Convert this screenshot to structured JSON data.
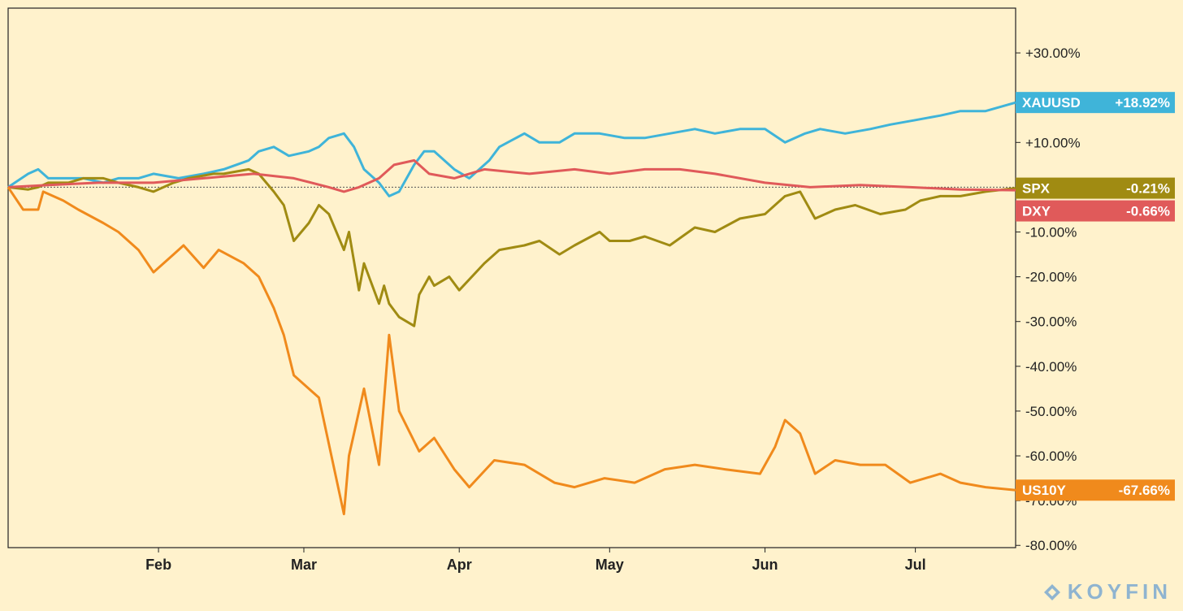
{
  "chart_data": {
    "type": "line",
    "y_unit": "%",
    "ylim": [
      -80,
      40
    ],
    "yticks": [
      30,
      10,
      -10,
      -20,
      -30,
      -40,
      -50,
      -60,
      -70,
      -80
    ],
    "ytick_labels": [
      "+30.00%",
      "+10.00%",
      "-10.00%",
      "-20.00%",
      "-30.00%",
      "-40.00%",
      "-50.00%",
      "-60.00%",
      "-70.00%",
      "-80.00%"
    ],
    "xlim": [
      "2020-01-02",
      "2020-07-21"
    ],
    "xticks": [
      {
        "label": "Feb",
        "date": "2020-02-01"
      },
      {
        "label": "Mar",
        "date": "2020-03-01"
      },
      {
        "label": "Apr",
        "date": "2020-04-01"
      },
      {
        "label": "May",
        "date": "2020-05-01"
      },
      {
        "label": "Jun",
        "date": "2020-06-01"
      },
      {
        "label": "Jul",
        "date": "2020-07-01"
      }
    ],
    "baseline": 0,
    "grid": false,
    "series": [
      {
        "name": "XAUUSD",
        "value_label": "+18.92%",
        "color": "#3fb4d9",
        "points": [
          [
            "2020-01-02",
            0
          ],
          [
            "2020-01-06",
            3
          ],
          [
            "2020-01-08",
            4
          ],
          [
            "2020-01-10",
            2
          ],
          [
            "2020-01-14",
            2
          ],
          [
            "2020-01-17",
            2
          ],
          [
            "2020-01-21",
            1
          ],
          [
            "2020-01-24",
            2
          ],
          [
            "2020-01-28",
            2
          ],
          [
            "2020-01-31",
            3
          ],
          [
            "2020-02-05",
            2
          ],
          [
            "2020-02-10",
            3
          ],
          [
            "2020-02-14",
            4
          ],
          [
            "2020-02-19",
            6
          ],
          [
            "2020-02-21",
            8
          ],
          [
            "2020-02-24",
            9
          ],
          [
            "2020-02-27",
            7
          ],
          [
            "2020-03-02",
            8
          ],
          [
            "2020-03-04",
            9
          ],
          [
            "2020-03-06",
            11
          ],
          [
            "2020-03-09",
            12
          ],
          [
            "2020-03-11",
            9
          ],
          [
            "2020-03-13",
            4
          ],
          [
            "2020-03-16",
            1
          ],
          [
            "2020-03-18",
            -2
          ],
          [
            "2020-03-20",
            -1
          ],
          [
            "2020-03-23",
            5
          ],
          [
            "2020-03-25",
            8
          ],
          [
            "2020-03-27",
            8
          ],
          [
            "2020-03-31",
            4
          ],
          [
            "2020-04-03",
            2
          ],
          [
            "2020-04-07",
            6
          ],
          [
            "2020-04-09",
            9
          ],
          [
            "2020-04-14",
            12
          ],
          [
            "2020-04-17",
            10
          ],
          [
            "2020-04-21",
            10
          ],
          [
            "2020-04-24",
            12
          ],
          [
            "2020-04-29",
            12
          ],
          [
            "2020-05-04",
            11
          ],
          [
            "2020-05-08",
            11
          ],
          [
            "2020-05-13",
            12
          ],
          [
            "2020-05-18",
            13
          ],
          [
            "2020-05-22",
            12
          ],
          [
            "2020-05-27",
            13
          ],
          [
            "2020-06-01",
            13
          ],
          [
            "2020-06-05",
            10
          ],
          [
            "2020-06-09",
            12
          ],
          [
            "2020-06-12",
            13
          ],
          [
            "2020-06-17",
            12
          ],
          [
            "2020-06-22",
            13
          ],
          [
            "2020-06-26",
            14
          ],
          [
            "2020-07-01",
            15
          ],
          [
            "2020-07-06",
            16
          ],
          [
            "2020-07-10",
            17
          ],
          [
            "2020-07-15",
            17
          ],
          [
            "2020-07-21",
            18.92
          ]
        ]
      },
      {
        "name": "SPX",
        "value_label": "-0.21%",
        "color": "#a08b12",
        "points": [
          [
            "2020-01-02",
            0
          ],
          [
            "2020-01-06",
            -0.5
          ],
          [
            "2020-01-08",
            0
          ],
          [
            "2020-01-10",
            1
          ],
          [
            "2020-01-14",
            1
          ],
          [
            "2020-01-17",
            2
          ],
          [
            "2020-01-21",
            2
          ],
          [
            "2020-01-24",
            1
          ],
          [
            "2020-01-28",
            0
          ],
          [
            "2020-01-31",
            -1
          ],
          [
            "2020-02-04",
            1
          ],
          [
            "2020-02-07",
            2
          ],
          [
            "2020-02-12",
            3
          ],
          [
            "2020-02-14",
            3
          ],
          [
            "2020-02-19",
            4
          ],
          [
            "2020-02-21",
            3
          ],
          [
            "2020-02-24",
            -1
          ],
          [
            "2020-02-26",
            -4
          ],
          [
            "2020-02-28",
            -12
          ],
          [
            "2020-03-02",
            -8
          ],
          [
            "2020-03-04",
            -4
          ],
          [
            "2020-03-06",
            -6
          ],
          [
            "2020-03-09",
            -14
          ],
          [
            "2020-03-10",
            -10
          ],
          [
            "2020-03-12",
            -23
          ],
          [
            "2020-03-13",
            -17
          ],
          [
            "2020-03-16",
            -26
          ],
          [
            "2020-03-17",
            -22
          ],
          [
            "2020-03-18",
            -26
          ],
          [
            "2020-03-20",
            -29
          ],
          [
            "2020-03-23",
            -31
          ],
          [
            "2020-03-24",
            -24
          ],
          [
            "2020-03-26",
            -20
          ],
          [
            "2020-03-27",
            -22
          ],
          [
            "2020-03-30",
            -20
          ],
          [
            "2020-04-01",
            -23
          ],
          [
            "2020-04-06",
            -17
          ],
          [
            "2020-04-09",
            -14
          ],
          [
            "2020-04-14",
            -13
          ],
          [
            "2020-04-17",
            -12
          ],
          [
            "2020-04-21",
            -15
          ],
          [
            "2020-04-24",
            -13
          ],
          [
            "2020-04-29",
            -10
          ],
          [
            "2020-05-01",
            -12
          ],
          [
            "2020-05-05",
            -12
          ],
          [
            "2020-05-08",
            -11
          ],
          [
            "2020-05-13",
            -13
          ],
          [
            "2020-05-18",
            -9
          ],
          [
            "2020-05-22",
            -10
          ],
          [
            "2020-05-27",
            -7
          ],
          [
            "2020-06-01",
            -6
          ],
          [
            "2020-06-05",
            -2
          ],
          [
            "2020-06-08",
            -1
          ],
          [
            "2020-06-11",
            -7
          ],
          [
            "2020-06-15",
            -5
          ],
          [
            "2020-06-19",
            -4
          ],
          [
            "2020-06-24",
            -6
          ],
          [
            "2020-06-29",
            -5
          ],
          [
            "2020-07-02",
            -3
          ],
          [
            "2020-07-06",
            -2
          ],
          [
            "2020-07-10",
            -2
          ],
          [
            "2020-07-15",
            -1
          ],
          [
            "2020-07-21",
            -0.21
          ]
        ]
      },
      {
        "name": "DXY",
        "value_label": "-0.66%",
        "color": "#e05a5a",
        "points": [
          [
            "2020-01-02",
            0
          ],
          [
            "2020-01-10",
            0.5
          ],
          [
            "2020-01-20",
            1
          ],
          [
            "2020-01-31",
            1
          ],
          [
            "2020-02-10",
            2
          ],
          [
            "2020-02-20",
            3
          ],
          [
            "2020-02-28",
            2
          ],
          [
            "2020-03-06",
            0
          ],
          [
            "2020-03-09",
            -1
          ],
          [
            "2020-03-12",
            0
          ],
          [
            "2020-03-16",
            2
          ],
          [
            "2020-03-19",
            5
          ],
          [
            "2020-03-23",
            6
          ],
          [
            "2020-03-26",
            3
          ],
          [
            "2020-03-31",
            2
          ],
          [
            "2020-04-06",
            4
          ],
          [
            "2020-04-15",
            3
          ],
          [
            "2020-04-24",
            4
          ],
          [
            "2020-05-01",
            3
          ],
          [
            "2020-05-08",
            4
          ],
          [
            "2020-05-15",
            4
          ],
          [
            "2020-05-22",
            3
          ],
          [
            "2020-06-01",
            1
          ],
          [
            "2020-06-10",
            0
          ],
          [
            "2020-06-20",
            0.5
          ],
          [
            "2020-06-30",
            0
          ],
          [
            "2020-07-10",
            -0.5
          ],
          [
            "2020-07-21",
            -0.66
          ]
        ]
      },
      {
        "name": "US10Y",
        "value_label": "-67.66%",
        "color": "#f08a1c",
        "points": [
          [
            "2020-01-02",
            0
          ],
          [
            "2020-01-05",
            -5
          ],
          [
            "2020-01-08",
            -5
          ],
          [
            "2020-01-09",
            -1
          ],
          [
            "2020-01-13",
            -3
          ],
          [
            "2020-01-16",
            -5
          ],
          [
            "2020-01-21",
            -8
          ],
          [
            "2020-01-24",
            -10
          ],
          [
            "2020-01-28",
            -14
          ],
          [
            "2020-01-31",
            -19
          ],
          [
            "2020-02-04",
            -15
          ],
          [
            "2020-02-06",
            -13
          ],
          [
            "2020-02-10",
            -18
          ],
          [
            "2020-02-13",
            -14
          ],
          [
            "2020-02-18",
            -17
          ],
          [
            "2020-02-21",
            -20
          ],
          [
            "2020-02-24",
            -27
          ],
          [
            "2020-02-26",
            -33
          ],
          [
            "2020-02-28",
            -42
          ],
          [
            "2020-03-02",
            -45
          ],
          [
            "2020-03-04",
            -47
          ],
          [
            "2020-03-09",
            -73
          ],
          [
            "2020-03-10",
            -60
          ],
          [
            "2020-03-11",
            -55
          ],
          [
            "2020-03-13",
            -45
          ],
          [
            "2020-03-16",
            -62
          ],
          [
            "2020-03-18",
            -33
          ],
          [
            "2020-03-20",
            -50
          ],
          [
            "2020-03-24",
            -59
          ],
          [
            "2020-03-27",
            -56
          ],
          [
            "2020-03-31",
            -63
          ],
          [
            "2020-04-03",
            -67
          ],
          [
            "2020-04-08",
            -61
          ],
          [
            "2020-04-14",
            -62
          ],
          [
            "2020-04-20",
            -66
          ],
          [
            "2020-04-24",
            -67
          ],
          [
            "2020-04-30",
            -65
          ],
          [
            "2020-05-06",
            -66
          ],
          [
            "2020-05-12",
            -63
          ],
          [
            "2020-05-18",
            -62
          ],
          [
            "2020-05-24",
            -63
          ],
          [
            "2020-05-31",
            -64
          ],
          [
            "2020-06-03",
            -58
          ],
          [
            "2020-06-05",
            -52
          ],
          [
            "2020-06-08",
            -55
          ],
          [
            "2020-06-11",
            -64
          ],
          [
            "2020-06-15",
            -61
          ],
          [
            "2020-06-20",
            -62
          ],
          [
            "2020-06-25",
            -62
          ],
          [
            "2020-06-30",
            -66
          ],
          [
            "2020-07-06",
            -64
          ],
          [
            "2020-07-10",
            -66
          ],
          [
            "2020-07-15",
            -67
          ],
          [
            "2020-07-21",
            -67.66
          ]
        ]
      }
    ]
  },
  "branding": {
    "logo_text": "KOYFIN",
    "logo_icon": "koyfin-diamond-icon",
    "logo_color": "#8fb4d0"
  },
  "colors": {
    "background": "#fff2cc",
    "axis": "#222222",
    "baseline": "#555555"
  }
}
